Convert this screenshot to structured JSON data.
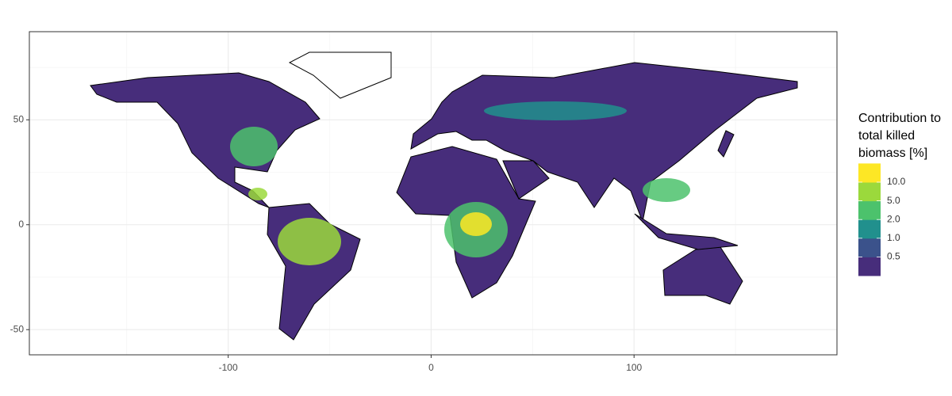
{
  "chart_data": {
    "type": "map",
    "xlim": [
      -198,
      200
    ],
    "ylim": [
      -62,
      92
    ],
    "xticks": [
      -100,
      0,
      100
    ],
    "yticks": [
      -50,
      0,
      50
    ],
    "grid": true,
    "legend": {
      "title": [
        "Contribution to",
        "total killed",
        "biomass [%]"
      ],
      "breaks": [
        {
          "value": 0.5,
          "label": "0.5"
        },
        {
          "value": 1,
          "label": "1.0"
        },
        {
          "value": 2,
          "label": "2.0"
        },
        {
          "value": 5,
          "label": "5.0"
        },
        {
          "value": 10,
          "label": "10.0"
        }
      ],
      "colors": [
        "#472d7b",
        "#3b528b",
        "#21908d",
        "#4cc26c",
        "#9bd93c",
        "#fde725"
      ]
    }
  }
}
